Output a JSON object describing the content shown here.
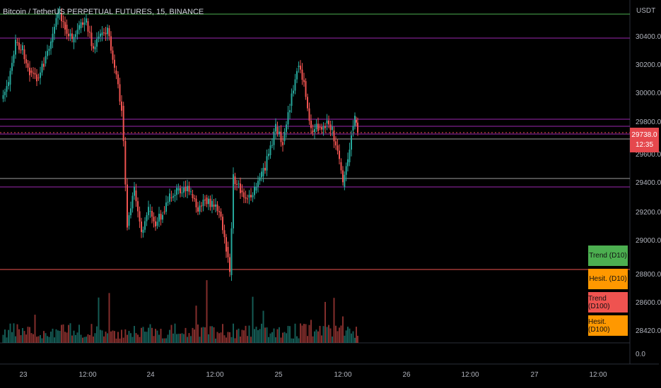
{
  "header": {
    "title": "Bitcoin / TetherUS PERPETUAL FUTURES, 15, BINANCE",
    "currency": "USDT"
  },
  "price_scale": {
    "labels": [
      "30400.0",
      "30200.0",
      "30000.0",
      "29800.0",
      "29600.0",
      "29400.0",
      "29200.0",
      "29000.0",
      "28800.0",
      "28600.0",
      "28420.0",
      "0.0"
    ],
    "current_price": "29738.0",
    "countdown": "12:35"
  },
  "time_scale": {
    "labels": [
      "23",
      "12:00",
      "24",
      "12:00",
      "25",
      "12:00",
      "26",
      "12:00",
      "27",
      "12:00"
    ]
  },
  "legend": [
    {
      "label": "Trend (D10)",
      "color": "#4caf50"
    },
    {
      "label": "Hesit. (D10)",
      "color": "#ff9800"
    },
    {
      "label": "Trend (D100)",
      "color": "#ef5350"
    },
    {
      "label": "Hesit. (D100)",
      "color": "#ff9800"
    }
  ],
  "colors": {
    "up": "#26a69a",
    "down": "#ef5350",
    "level_line": "#9c27b0",
    "support_line": "#ef5350",
    "resistance_line": "#4caf50"
  }
}
